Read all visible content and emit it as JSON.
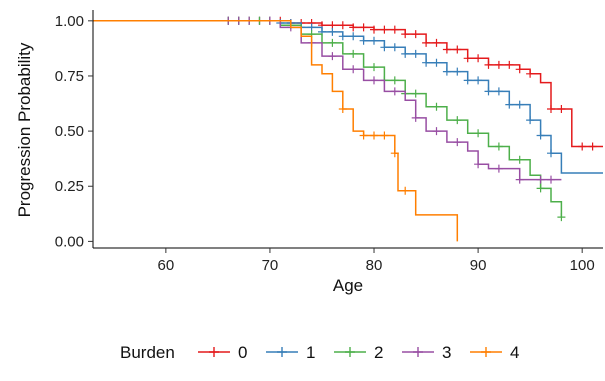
{
  "chart_data": {
    "type": "line",
    "title": "",
    "xlabel": "Age",
    "ylabel": "Progression Probability",
    "xlim": [
      53,
      102
    ],
    "ylim": [
      -0.03,
      1.04
    ],
    "xticks": [
      60,
      70,
      80,
      90,
      100
    ],
    "yticks": [
      0.0,
      0.25,
      0.5,
      0.75,
      1.0
    ],
    "xtick_labels": [
      "60",
      "70",
      "80",
      "90",
      "100"
    ],
    "ytick_labels": [
      "0.00",
      "0.25",
      "0.50",
      "0.75",
      "1.00"
    ],
    "grid": false,
    "legend": {
      "title": "Burden",
      "position": "bottom"
    },
    "series": [
      {
        "name": "0",
        "color": "#e41a1c",
        "steps": [
          [
            53,
            1.0
          ],
          [
            72,
            0.99
          ],
          [
            75,
            0.98
          ],
          [
            78,
            0.97
          ],
          [
            80,
            0.96
          ],
          [
            83,
            0.94
          ],
          [
            85,
            0.9
          ],
          [
            87,
            0.87
          ],
          [
            89,
            0.83
          ],
          [
            91,
            0.8
          ],
          [
            94,
            0.78
          ],
          [
            95,
            0.76
          ],
          [
            96,
            0.72
          ],
          [
            97,
            0.6
          ],
          [
            99,
            0.43
          ],
          [
            102,
            0.43
          ]
        ],
        "censor_x": [
          66,
          67,
          68,
          69,
          70,
          71,
          72,
          73,
          74,
          75,
          76,
          77,
          78,
          79,
          80,
          81,
          82,
          83,
          84,
          85,
          86,
          87,
          88,
          89,
          90,
          91,
          92,
          93,
          94,
          95,
          97,
          98,
          100,
          101
        ]
      },
      {
        "name": "1",
        "color": "#377eb8",
        "steps": [
          [
            53,
            1.0
          ],
          [
            71,
            0.99
          ],
          [
            73,
            0.97
          ],
          [
            75,
            0.95
          ],
          [
            77,
            0.93
          ],
          [
            79,
            0.91
          ],
          [
            81,
            0.88
          ],
          [
            83,
            0.85
          ],
          [
            85,
            0.81
          ],
          [
            87,
            0.77
          ],
          [
            89,
            0.73
          ],
          [
            91,
            0.68
          ],
          [
            93,
            0.62
          ],
          [
            95,
            0.55
          ],
          [
            96,
            0.48
          ],
          [
            97,
            0.4
          ],
          [
            98,
            0.31
          ],
          [
            102,
            0.31
          ]
        ],
        "censor_x": [
          66,
          67,
          68,
          69,
          70,
          71,
          72,
          73,
          74,
          75,
          76,
          77,
          78,
          79,
          80,
          81,
          82,
          83,
          84,
          85,
          86,
          87,
          88,
          89,
          90,
          91,
          92,
          93,
          94,
          95,
          96,
          97
        ]
      },
      {
        "name": "2",
        "color": "#4daf4a",
        "steps": [
          [
            53,
            1.0
          ],
          [
            71,
            0.98
          ],
          [
            73,
            0.94
          ],
          [
            75,
            0.9
          ],
          [
            77,
            0.85
          ],
          [
            79,
            0.79
          ],
          [
            81,
            0.73
          ],
          [
            83,
            0.67
          ],
          [
            85,
            0.61
          ],
          [
            87,
            0.55
          ],
          [
            89,
            0.49
          ],
          [
            91,
            0.43
          ],
          [
            93,
            0.37
          ],
          [
            95,
            0.3
          ],
          [
            96,
            0.24
          ],
          [
            97,
            0.18
          ],
          [
            98,
            0.11
          ]
        ],
        "censor_x": [
          66,
          67,
          68,
          69,
          70,
          72,
          74,
          76,
          78,
          80,
          81,
          82,
          83,
          84,
          86,
          88,
          90,
          92,
          94,
          96,
          98
        ]
      },
      {
        "name": "3",
        "color": "#984ea3",
        "steps": [
          [
            53,
            1.0
          ],
          [
            71,
            0.97
          ],
          [
            73,
            0.9
          ],
          [
            75,
            0.84
          ],
          [
            77,
            0.78
          ],
          [
            79,
            0.73
          ],
          [
            81,
            0.68
          ],
          [
            83,
            0.64
          ],
          [
            84,
            0.56
          ],
          [
            85,
            0.5
          ],
          [
            87,
            0.45
          ],
          [
            89,
            0.41
          ],
          [
            90,
            0.35
          ],
          [
            91,
            0.33
          ],
          [
            94,
            0.28
          ],
          [
            98,
            0.28
          ]
        ],
        "censor_x": [
          66,
          67,
          68,
          70,
          72,
          74,
          76,
          78,
          80,
          82,
          84,
          86,
          88,
          90,
          92,
          94,
          96,
          97
        ]
      },
      {
        "name": "4",
        "color": "#ff7f00",
        "steps": [
          [
            53,
            1.0
          ],
          [
            72,
            0.97
          ],
          [
            73,
            0.93
          ],
          [
            74,
            0.8
          ],
          [
            75,
            0.76
          ],
          [
            76,
            0.68
          ],
          [
            77,
            0.6
          ],
          [
            78,
            0.5
          ],
          [
            79,
            0.48
          ],
          [
            81,
            0.48
          ],
          [
            82,
            0.4
          ],
          [
            82.3,
            0.23
          ],
          [
            84,
            0.12
          ],
          [
            88,
            0.12
          ],
          [
            88,
            0.0
          ]
        ],
        "censor_x": [
          77,
          79,
          80,
          81,
          82,
          83
        ]
      }
    ]
  }
}
